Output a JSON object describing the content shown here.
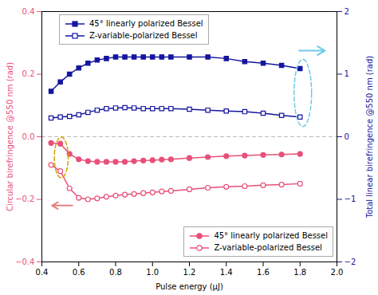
{
  "chart_data": {
    "type": "line",
    "x": [
      0.45,
      0.5,
      0.55,
      0.6,
      0.65,
      0.7,
      0.75,
      0.8,
      0.85,
      0.9,
      0.95,
      1.0,
      1.05,
      1.1,
      1.2,
      1.3,
      1.4,
      1.5,
      1.6,
      1.7,
      1.8
    ],
    "series": [
      {
        "name": "45° linearly polarized Bessel",
        "color": "#1515a0",
        "marker": "square",
        "line_style": "solid",
        "legend": "upper left",
        "values": [
          0.145,
          0.175,
          0.2,
          0.22,
          0.235,
          0.245,
          0.25,
          0.255,
          0.255,
          0.255,
          0.255,
          0.255,
          0.255,
          0.255,
          0.255,
          0.255,
          0.25,
          0.24,
          0.235,
          0.228,
          0.218
        ]
      },
      {
        "name": "Z-variable-polarized Bessel",
        "color": "#1515a0",
        "marker": "open_square",
        "line_style": "solid",
        "legend": "upper left",
        "values": [
          0.06,
          0.063,
          0.065,
          0.07,
          0.078,
          0.085,
          0.09,
          0.092,
          0.093,
          0.092,
          0.09,
          0.09,
          0.09,
          0.09,
          0.088,
          0.085,
          0.082,
          0.08,
          0.075,
          0.068,
          0.063
        ]
      },
      {
        "name": "45° linearly polarized Bessel",
        "color": "#e8507a",
        "marker": "circle",
        "line_style": "solid",
        "legend": "lower right",
        "values": [
          -0.02,
          -0.022,
          -0.055,
          -0.072,
          -0.078,
          -0.08,
          -0.08,
          -0.08,
          -0.08,
          -0.078,
          -0.076,
          -0.075,
          -0.073,
          -0.072,
          -0.068,
          -0.065,
          -0.062,
          -0.06,
          -0.058,
          -0.057,
          -0.055
        ]
      },
      {
        "name": "Z-variable-polarized Bessel",
        "color": "#e8507a",
        "marker": "open_circle",
        "line_style": "solid",
        "legend": "lower right",
        "values": [
          -0.09,
          -0.11,
          -0.165,
          -0.195,
          -0.2,
          -0.197,
          -0.192,
          -0.188,
          -0.185,
          -0.183,
          -0.18,
          -0.178,
          -0.175,
          -0.173,
          -0.168,
          -0.163,
          -0.16,
          -0.158,
          -0.155,
          -0.153,
          -0.15
        ]
      }
    ],
    "xlabel": "Pulse energy (μJ)",
    "ylabel": "Circular birefringence @550 nm (rad)",
    "y2label": "Total linear birefringence @550 nm (rad)",
    "ylabel_color": "#e8507a",
    "y2label_color": "#1515a0",
    "xlim": [
      0.4,
      2.0
    ],
    "xticks": [
      0.4,
      0.6,
      0.8,
      {
        "value": 1.0,
        "label": "1.0"
      },
      1.2,
      1.4,
      1.6,
      1.8,
      {
        "value": 2.0,
        "label": "2.0"
      }
    ],
    "ylim": [
      -0.4,
      0.4
    ],
    "yticks": [
      {
        "value": -0.4,
        "label": "−0.4"
      },
      {
        "value": -0.2,
        "label": "−0.2"
      },
      {
        "value": 0.0,
        "label": "0.0"
      },
      0.2,
      0.4
    ],
    "y2lim": [
      -2.0,
      2.0
    ],
    "y2ticks": [
      {
        "value": -2,
        "label": "−2"
      },
      {
        "value": -1,
        "label": "−1"
      },
      0,
      1,
      2
    ],
    "grid": false,
    "hlines": [
      {
        "y": 0,
        "color": "#aaaaaa",
        "line_style": "dashed"
      }
    ],
    "ellipses": [
      {
        "x": 0.505,
        "y": -0.066,
        "width": 0.075,
        "height": 0.13,
        "color": "#d4a000",
        "line_style": "dashed"
      },
      {
        "x": 1.815,
        "y": 0.14,
        "width": 0.095,
        "height": 0.215,
        "color": "#70c8e8",
        "line_style": "dashed"
      }
    ],
    "arrows": [
      {
        "x": 0.565,
        "y": -0.22,
        "x_end": 0.455,
        "y_end": -0.22,
        "color": "#e88080"
      },
      {
        "x": 1.795,
        "y": 0.275,
        "x_end": 1.935,
        "y_end": 0.275,
        "color": "#70c8e8"
      }
    ]
  }
}
